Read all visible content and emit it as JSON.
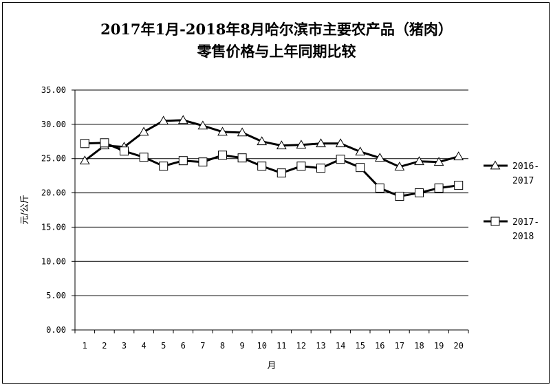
{
  "chart_data": {
    "type": "line",
    "title_line1": "2017年1月-2018年8月哈尔滨市主要农产品（猪肉）",
    "title_line2": "零售价格与上年同期比较",
    "xlabel": "月",
    "ylabel": "元/公斤",
    "ylim": [
      0,
      35
    ],
    "yticks": [
      "0.00",
      "5.00",
      "10.00",
      "15.00",
      "20.00",
      "25.00",
      "30.00",
      "35.00"
    ],
    "x": [
      1,
      2,
      3,
      4,
      5,
      6,
      7,
      8,
      9,
      10,
      11,
      12,
      13,
      14,
      15,
      16,
      17,
      18,
      19,
      20
    ],
    "grid": true,
    "legend_position": "right",
    "series": [
      {
        "name_line1": "2016-",
        "name_line2": "2017",
        "marker": "triangle",
        "color": "#000000",
        "values": [
          24.7,
          26.9,
          26.7,
          28.9,
          30.5,
          30.6,
          29.8,
          28.9,
          28.8,
          27.5,
          26.9,
          27.0,
          27.2,
          27.2,
          26.0,
          25.1,
          23.8,
          24.6,
          24.5,
          25.3
        ]
      },
      {
        "name_line1": "2017-",
        "name_line2": "2018",
        "marker": "square",
        "color": "#000000",
        "values": [
          27.2,
          27.3,
          26.1,
          25.2,
          23.9,
          24.7,
          24.5,
          25.5,
          25.1,
          23.9,
          22.9,
          23.9,
          23.6,
          24.9,
          23.7,
          20.7,
          19.5,
          20.0,
          20.7,
          21.1
        ]
      }
    ]
  }
}
